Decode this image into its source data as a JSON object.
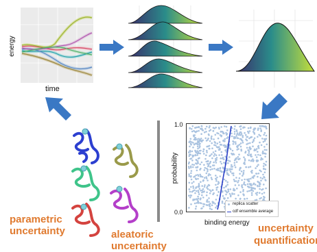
{
  "panels": {
    "timeseries": {
      "ylabel": "energy",
      "xlabel": "time"
    },
    "scatter": {
      "ylabel": "probability",
      "xlabel": "binding energy",
      "ytick_top": "1.0",
      "ytick_bottom": "0.0",
      "legend_scatter": "replica scatter",
      "legend_cdf": "cdf ensemble average"
    }
  },
  "labels": {
    "parametric_line1": "parametric",
    "parametric_line2": "uncertainty",
    "aleatoric_line1": "aleatoric",
    "aleatoric_line2": "uncertainty",
    "quant_line1": "uncertainty",
    "quant_line2": "quantification"
  },
  "colors": {
    "arrow": "#3a78c4",
    "accent_text": "#e07a2f",
    "scatter_point": "#aac3e0",
    "cdf_line": "#2a3fc7",
    "density_dark": "#3b2d6b",
    "density_mid": "#2a8c8a",
    "density_light": "#c6df3a"
  },
  "icons": [
    "arrow-right-icon",
    "arrow-down-left-icon",
    "arrow-up-left-icon",
    "protein-structure-icon"
  ]
}
